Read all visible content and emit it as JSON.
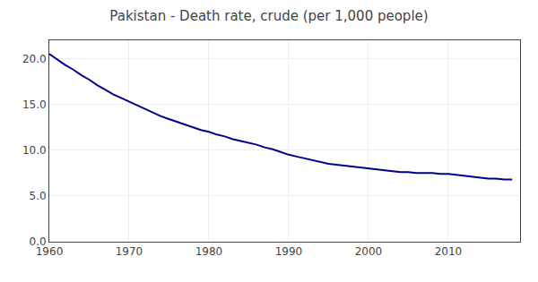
{
  "chart_data": {
    "type": "line",
    "title": "Pakistan - Death rate, crude (per 1,000 people)",
    "x": [
      1960,
      1961,
      1962,
      1963,
      1964,
      1965,
      1966,
      1967,
      1968,
      1969,
      1970,
      1971,
      1972,
      1973,
      1974,
      1975,
      1976,
      1977,
      1978,
      1979,
      1980,
      1981,
      1982,
      1983,
      1984,
      1985,
      1986,
      1987,
      1988,
      1989,
      1990,
      1991,
      1992,
      1993,
      1994,
      1995,
      1996,
      1997,
      1998,
      1999,
      2000,
      2001,
      2002,
      2003,
      2004,
      2005,
      2006,
      2007,
      2008,
      2009,
      2010,
      2011,
      2012,
      2013,
      2014,
      2015,
      2016,
      2017,
      2018
    ],
    "values": [
      20.5,
      19.9,
      19.3,
      18.8,
      18.2,
      17.7,
      17.1,
      16.6,
      16.1,
      15.7,
      15.3,
      14.9,
      14.5,
      14.1,
      13.7,
      13.4,
      13.1,
      12.8,
      12.5,
      12.2,
      12.0,
      11.7,
      11.5,
      11.2,
      11.0,
      10.8,
      10.6,
      10.3,
      10.1,
      9.8,
      9.5,
      9.3,
      9.1,
      8.9,
      8.7,
      8.5,
      8.4,
      8.3,
      8.2,
      8.1,
      8.0,
      7.9,
      7.8,
      7.7,
      7.6,
      7.6,
      7.5,
      7.5,
      7.5,
      7.4,
      7.4,
      7.3,
      7.2,
      7.1,
      7.0,
      6.9,
      6.9,
      6.8,
      6.8
    ],
    "color": "#00008B",
    "xlim": [
      1960,
      2019
    ],
    "ylim": [
      0.0,
      22.0
    ],
    "xticks": [
      1960,
      1970,
      1980,
      1990,
      2000,
      2010
    ],
    "yticks": [
      {
        "value": 0.0,
        "label": "0.0"
      },
      {
        "value": 5.0,
        "label": "5.0"
      },
      {
        "value": 10.0,
        "label": "10.0"
      },
      {
        "value": 15.0,
        "label": "15.0"
      },
      {
        "value": 20.0,
        "label": "20.0"
      }
    ],
    "grid": true
  }
}
